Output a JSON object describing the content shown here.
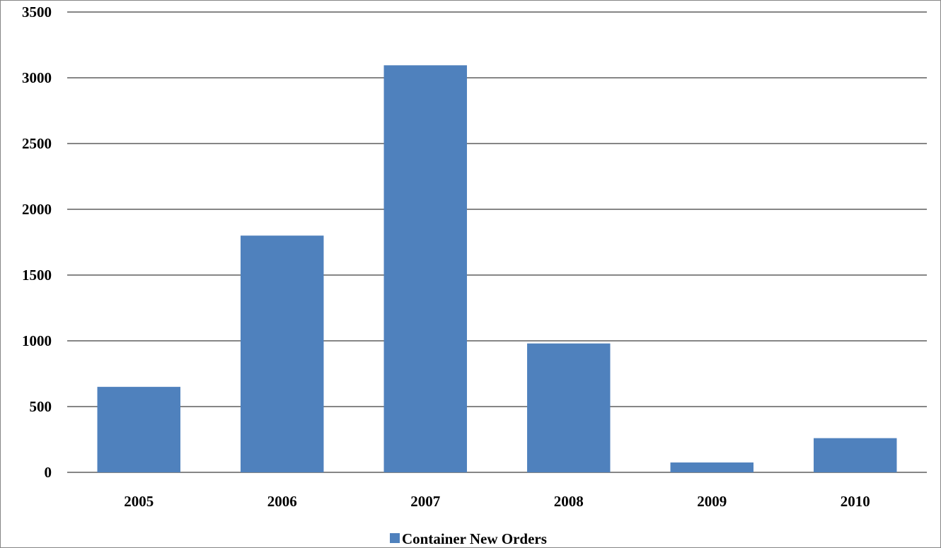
{
  "chart_data": {
    "type": "bar",
    "categories": [
      "2005",
      "2006",
      "2007",
      "2008",
      "2009",
      "2010"
    ],
    "series": [
      {
        "name": "Container New Orders",
        "values": [
          650,
          1800,
          3095,
          980,
          75,
          260
        ]
      }
    ],
    "yticks": [
      "0",
      "500",
      "1000",
      "1500",
      "2000",
      "2500",
      "3000",
      "3500"
    ],
    "ylim": [
      0,
      3500
    ],
    "grid": true,
    "legend_position": "bottom",
    "colors": {
      "bar": "#4f81bd",
      "grid": "#868686",
      "axis": "#868686"
    }
  }
}
